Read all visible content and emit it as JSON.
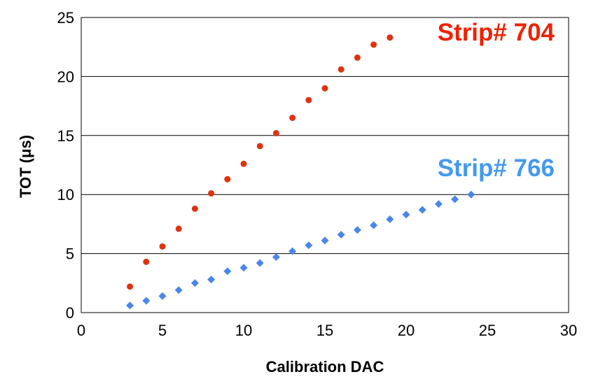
{
  "chart_data": {
    "type": "scatter",
    "xlabel": "Calibration DAC",
    "ylabel": "TOT (μs)",
    "xlim": [
      0,
      30
    ],
    "ylim": [
      0,
      25
    ],
    "xticks": [
      "0",
      "5",
      "10",
      "15",
      "20",
      "25",
      "30"
    ],
    "yticks": [
      "0",
      "5",
      "10",
      "15",
      "20",
      "25"
    ],
    "grid": "horizontal",
    "series": [
      {
        "name": "Strip# 704",
        "marker": "circle",
        "color": "#dd3311",
        "x": [
          3,
          4,
          5,
          6,
          7,
          8,
          9,
          10,
          11,
          12,
          13,
          14,
          15,
          16,
          17,
          18,
          19
        ],
        "y": [
          2.2,
          4.3,
          5.6,
          7.1,
          8.8,
          10.1,
          11.3,
          12.6,
          14.1,
          15.2,
          16.5,
          18.0,
          19.0,
          20.6,
          21.6,
          22.7,
          23.3
        ]
      },
      {
        "name": "Strip# 766",
        "marker": "diamond",
        "color": "#4a86e8",
        "x": [
          3,
          4,
          5,
          6,
          7,
          8,
          9,
          10,
          11,
          12,
          13,
          14,
          15,
          16,
          17,
          18,
          19,
          20,
          21,
          22,
          23,
          24
        ],
        "y": [
          0.6,
          1.0,
          1.4,
          1.9,
          2.5,
          2.8,
          3.5,
          3.8,
          4.2,
          4.7,
          5.2,
          5.7,
          6.1,
          6.6,
          7.0,
          7.4,
          7.9,
          8.3,
          8.7,
          9.2,
          9.6,
          10.0
        ]
      }
    ],
    "series_label_colors": [
      "#ee2200",
      "#4499ee"
    ]
  }
}
